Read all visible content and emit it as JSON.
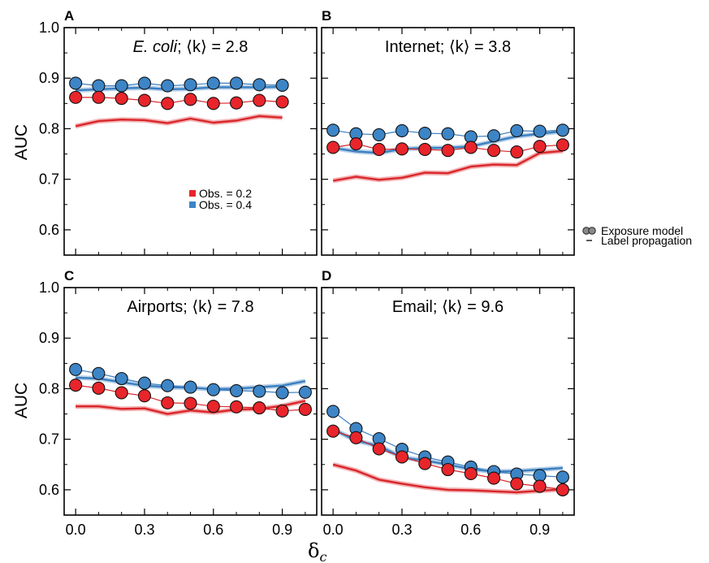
{
  "xlabel": "δ",
  "xlabel_sub": "c",
  "ylabel": "AUC",
  "colors": {
    "obs02": "#e8252b",
    "obs04": "#3d85c6",
    "red_line": "#d9262a",
    "blue_line": "#3a7fc1",
    "grey_marker": "#8a8a8a"
  },
  "panel_legend": {
    "items": [
      {
        "label": "Obs. = 0.2",
        "color": "#e8252b"
      },
      {
        "label": "Obs. = 0.4",
        "color": "#3d85c6"
      }
    ]
  },
  "figure_legend": {
    "items": [
      {
        "label": "Exposure model",
        "icon": "two-grey-circles"
      },
      {
        "label": "Label propagation",
        "icon": "dash"
      }
    ]
  },
  "x_ticks": [
    "0.0",
    "0.3",
    "0.6",
    "0.9"
  ],
  "y_ticks": [
    "0.6",
    "0.7",
    "0.8",
    "0.9",
    "1.0"
  ],
  "chart_data": [
    {
      "type": "line",
      "letter": "A",
      "title_pre": "",
      "title_italic": "E. coli",
      "title_post": "; ⟨k⟩ = 2.8",
      "xlim": [
        -0.05,
        1.05
      ],
      "ylim": [
        0.55,
        1.0
      ],
      "series": [
        {
          "name": "Obs. = 0.4",
          "style": "markers",
          "x": [
            0.0,
            0.1,
            0.2,
            0.3,
            0.4,
            0.5,
            0.6,
            0.7,
            0.8,
            0.9
          ],
          "y": [
            0.89,
            0.885,
            0.885,
            0.89,
            0.885,
            0.887,
            0.89,
            0.89,
            0.887,
            0.886
          ]
        },
        {
          "name": "Obs. = 0.2",
          "style": "markers",
          "x": [
            0.0,
            0.1,
            0.2,
            0.3,
            0.4,
            0.5,
            0.6,
            0.7,
            0.8,
            0.9
          ],
          "y": [
            0.862,
            0.862,
            0.86,
            0.856,
            0.85,
            0.858,
            0.85,
            0.851,
            0.856,
            0.853
          ]
        },
        {
          "name": "Obs. = 0.4",
          "style": "band",
          "x": [
            0.0,
            0.1,
            0.2,
            0.3,
            0.4,
            0.5,
            0.6,
            0.7,
            0.8,
            0.9
          ],
          "y": [
            0.876,
            0.878,
            0.88,
            0.881,
            0.878,
            0.879,
            0.882,
            0.882,
            0.882,
            0.883
          ]
        },
        {
          "name": "Obs. = 0.2",
          "style": "band",
          "x": [
            0.0,
            0.1,
            0.2,
            0.3,
            0.4,
            0.5,
            0.6,
            0.7,
            0.8,
            0.9
          ],
          "y": [
            0.805,
            0.815,
            0.818,
            0.817,
            0.811,
            0.82,
            0.812,
            0.816,
            0.825,
            0.822
          ]
        }
      ]
    },
    {
      "type": "line",
      "letter": "B",
      "title_pre": "Internet; ",
      "title_italic": "",
      "title_post": "⟨k⟩ = 3.8",
      "xlim": [
        -0.05,
        1.05
      ],
      "ylim": [
        0.55,
        1.0
      ],
      "series": [
        {
          "name": "Obs. = 0.4",
          "style": "markers",
          "x": [
            0.0,
            0.1,
            0.2,
            0.3,
            0.4,
            0.5,
            0.6,
            0.7,
            0.8,
            0.9,
            1.0
          ],
          "y": [
            0.797,
            0.79,
            0.788,
            0.796,
            0.791,
            0.79,
            0.784,
            0.786,
            0.796,
            0.795,
            0.797
          ]
        },
        {
          "name": "Obs. = 0.2",
          "style": "markers",
          "x": [
            0.0,
            0.1,
            0.2,
            0.3,
            0.4,
            0.5,
            0.6,
            0.7,
            0.8,
            0.9,
            1.0
          ],
          "y": [
            0.763,
            0.77,
            0.759,
            0.76,
            0.759,
            0.757,
            0.763,
            0.757,
            0.754,
            0.765,
            0.768
          ]
        },
        {
          "name": "Obs. = 0.4",
          "style": "band",
          "x": [
            0.0,
            0.1,
            0.2,
            0.3,
            0.4,
            0.5,
            0.6,
            0.7,
            0.8,
            0.9,
            1.0
          ],
          "y": [
            0.762,
            0.755,
            0.752,
            0.76,
            0.762,
            0.762,
            0.765,
            0.775,
            0.785,
            0.79,
            0.795
          ]
        },
        {
          "name": "Obs. = 0.2",
          "style": "band",
          "x": [
            0.0,
            0.1,
            0.2,
            0.3,
            0.4,
            0.5,
            0.6,
            0.7,
            0.8,
            0.9,
            1.0
          ],
          "y": [
            0.697,
            0.705,
            0.699,
            0.703,
            0.713,
            0.712,
            0.725,
            0.729,
            0.728,
            0.752,
            0.756
          ]
        }
      ]
    },
    {
      "type": "line",
      "letter": "C",
      "title_pre": "Airports; ",
      "title_italic": "",
      "title_post": "⟨k⟩ = 7.8",
      "xlim": [
        -0.05,
        1.05
      ],
      "ylim": [
        0.55,
        1.0
      ],
      "series": [
        {
          "name": "Obs. = 0.4",
          "style": "markers",
          "x": [
            0.0,
            0.1,
            0.2,
            0.3,
            0.4,
            0.5,
            0.6,
            0.7,
            0.8,
            0.9,
            1.0
          ],
          "y": [
            0.838,
            0.83,
            0.82,
            0.811,
            0.806,
            0.803,
            0.798,
            0.796,
            0.795,
            0.792,
            0.793
          ]
        },
        {
          "name": "Obs. = 0.2",
          "style": "markers",
          "x": [
            0.0,
            0.1,
            0.2,
            0.3,
            0.4,
            0.5,
            0.6,
            0.7,
            0.8,
            0.9,
            1.0
          ],
          "y": [
            0.807,
            0.801,
            0.792,
            0.786,
            0.772,
            0.771,
            0.765,
            0.764,
            0.762,
            0.756,
            0.759
          ]
        },
        {
          "name": "Obs. = 0.4",
          "style": "band",
          "x": [
            0.0,
            0.1,
            0.2,
            0.3,
            0.4,
            0.5,
            0.6,
            0.7,
            0.8,
            0.9,
            1.0
          ],
          "y": [
            0.822,
            0.82,
            0.813,
            0.806,
            0.803,
            0.802,
            0.799,
            0.8,
            0.803,
            0.806,
            0.815
          ]
        },
        {
          "name": "Obs. = 0.2",
          "style": "band",
          "x": [
            0.0,
            0.1,
            0.2,
            0.3,
            0.4,
            0.5,
            0.6,
            0.7,
            0.8,
            0.9,
            1.0
          ],
          "y": [
            0.765,
            0.765,
            0.76,
            0.761,
            0.75,
            0.757,
            0.753,
            0.759,
            0.76,
            0.766,
            0.776
          ]
        }
      ]
    },
    {
      "type": "line",
      "letter": "D",
      "title_pre": "Email; ",
      "title_italic": "",
      "title_post": "⟨k⟩ = 9.6",
      "xlim": [
        -0.05,
        1.05
      ],
      "ylim": [
        0.55,
        1.0
      ],
      "series": [
        {
          "name": "Obs. = 0.4",
          "style": "markers",
          "x": [
            0.0,
            0.1,
            0.2,
            0.3,
            0.4,
            0.5,
            0.6,
            0.7,
            0.8,
            0.9,
            1.0
          ],
          "y": [
            0.755,
            0.721,
            0.701,
            0.68,
            0.665,
            0.655,
            0.645,
            0.636,
            0.631,
            0.628,
            0.625
          ]
        },
        {
          "name": "Obs. = 0.2",
          "style": "markers",
          "x": [
            0.0,
            0.1,
            0.2,
            0.3,
            0.4,
            0.5,
            0.6,
            0.7,
            0.8,
            0.9,
            1.0
          ],
          "y": [
            0.716,
            0.703,
            0.681,
            0.665,
            0.652,
            0.64,
            0.632,
            0.623,
            0.612,
            0.607,
            0.6
          ]
        },
        {
          "name": "Obs. = 0.4",
          "style": "band",
          "x": [
            0.0,
            0.1,
            0.2,
            0.3,
            0.4,
            0.5,
            0.6,
            0.7,
            0.8,
            0.9,
            1.0
          ],
          "y": [
            0.72,
            0.697,
            0.687,
            0.664,
            0.658,
            0.65,
            0.641,
            0.636,
            0.637,
            0.64,
            0.643
          ]
        },
        {
          "name": "Obs. = 0.2",
          "style": "band",
          "x": [
            0.0,
            0.1,
            0.2,
            0.3,
            0.4,
            0.5,
            0.6,
            0.7,
            0.8,
            0.9,
            1.0
          ],
          "y": [
            0.65,
            0.638,
            0.62,
            0.612,
            0.605,
            0.6,
            0.599,
            0.597,
            0.595,
            0.598,
            0.601
          ]
        }
      ]
    }
  ]
}
